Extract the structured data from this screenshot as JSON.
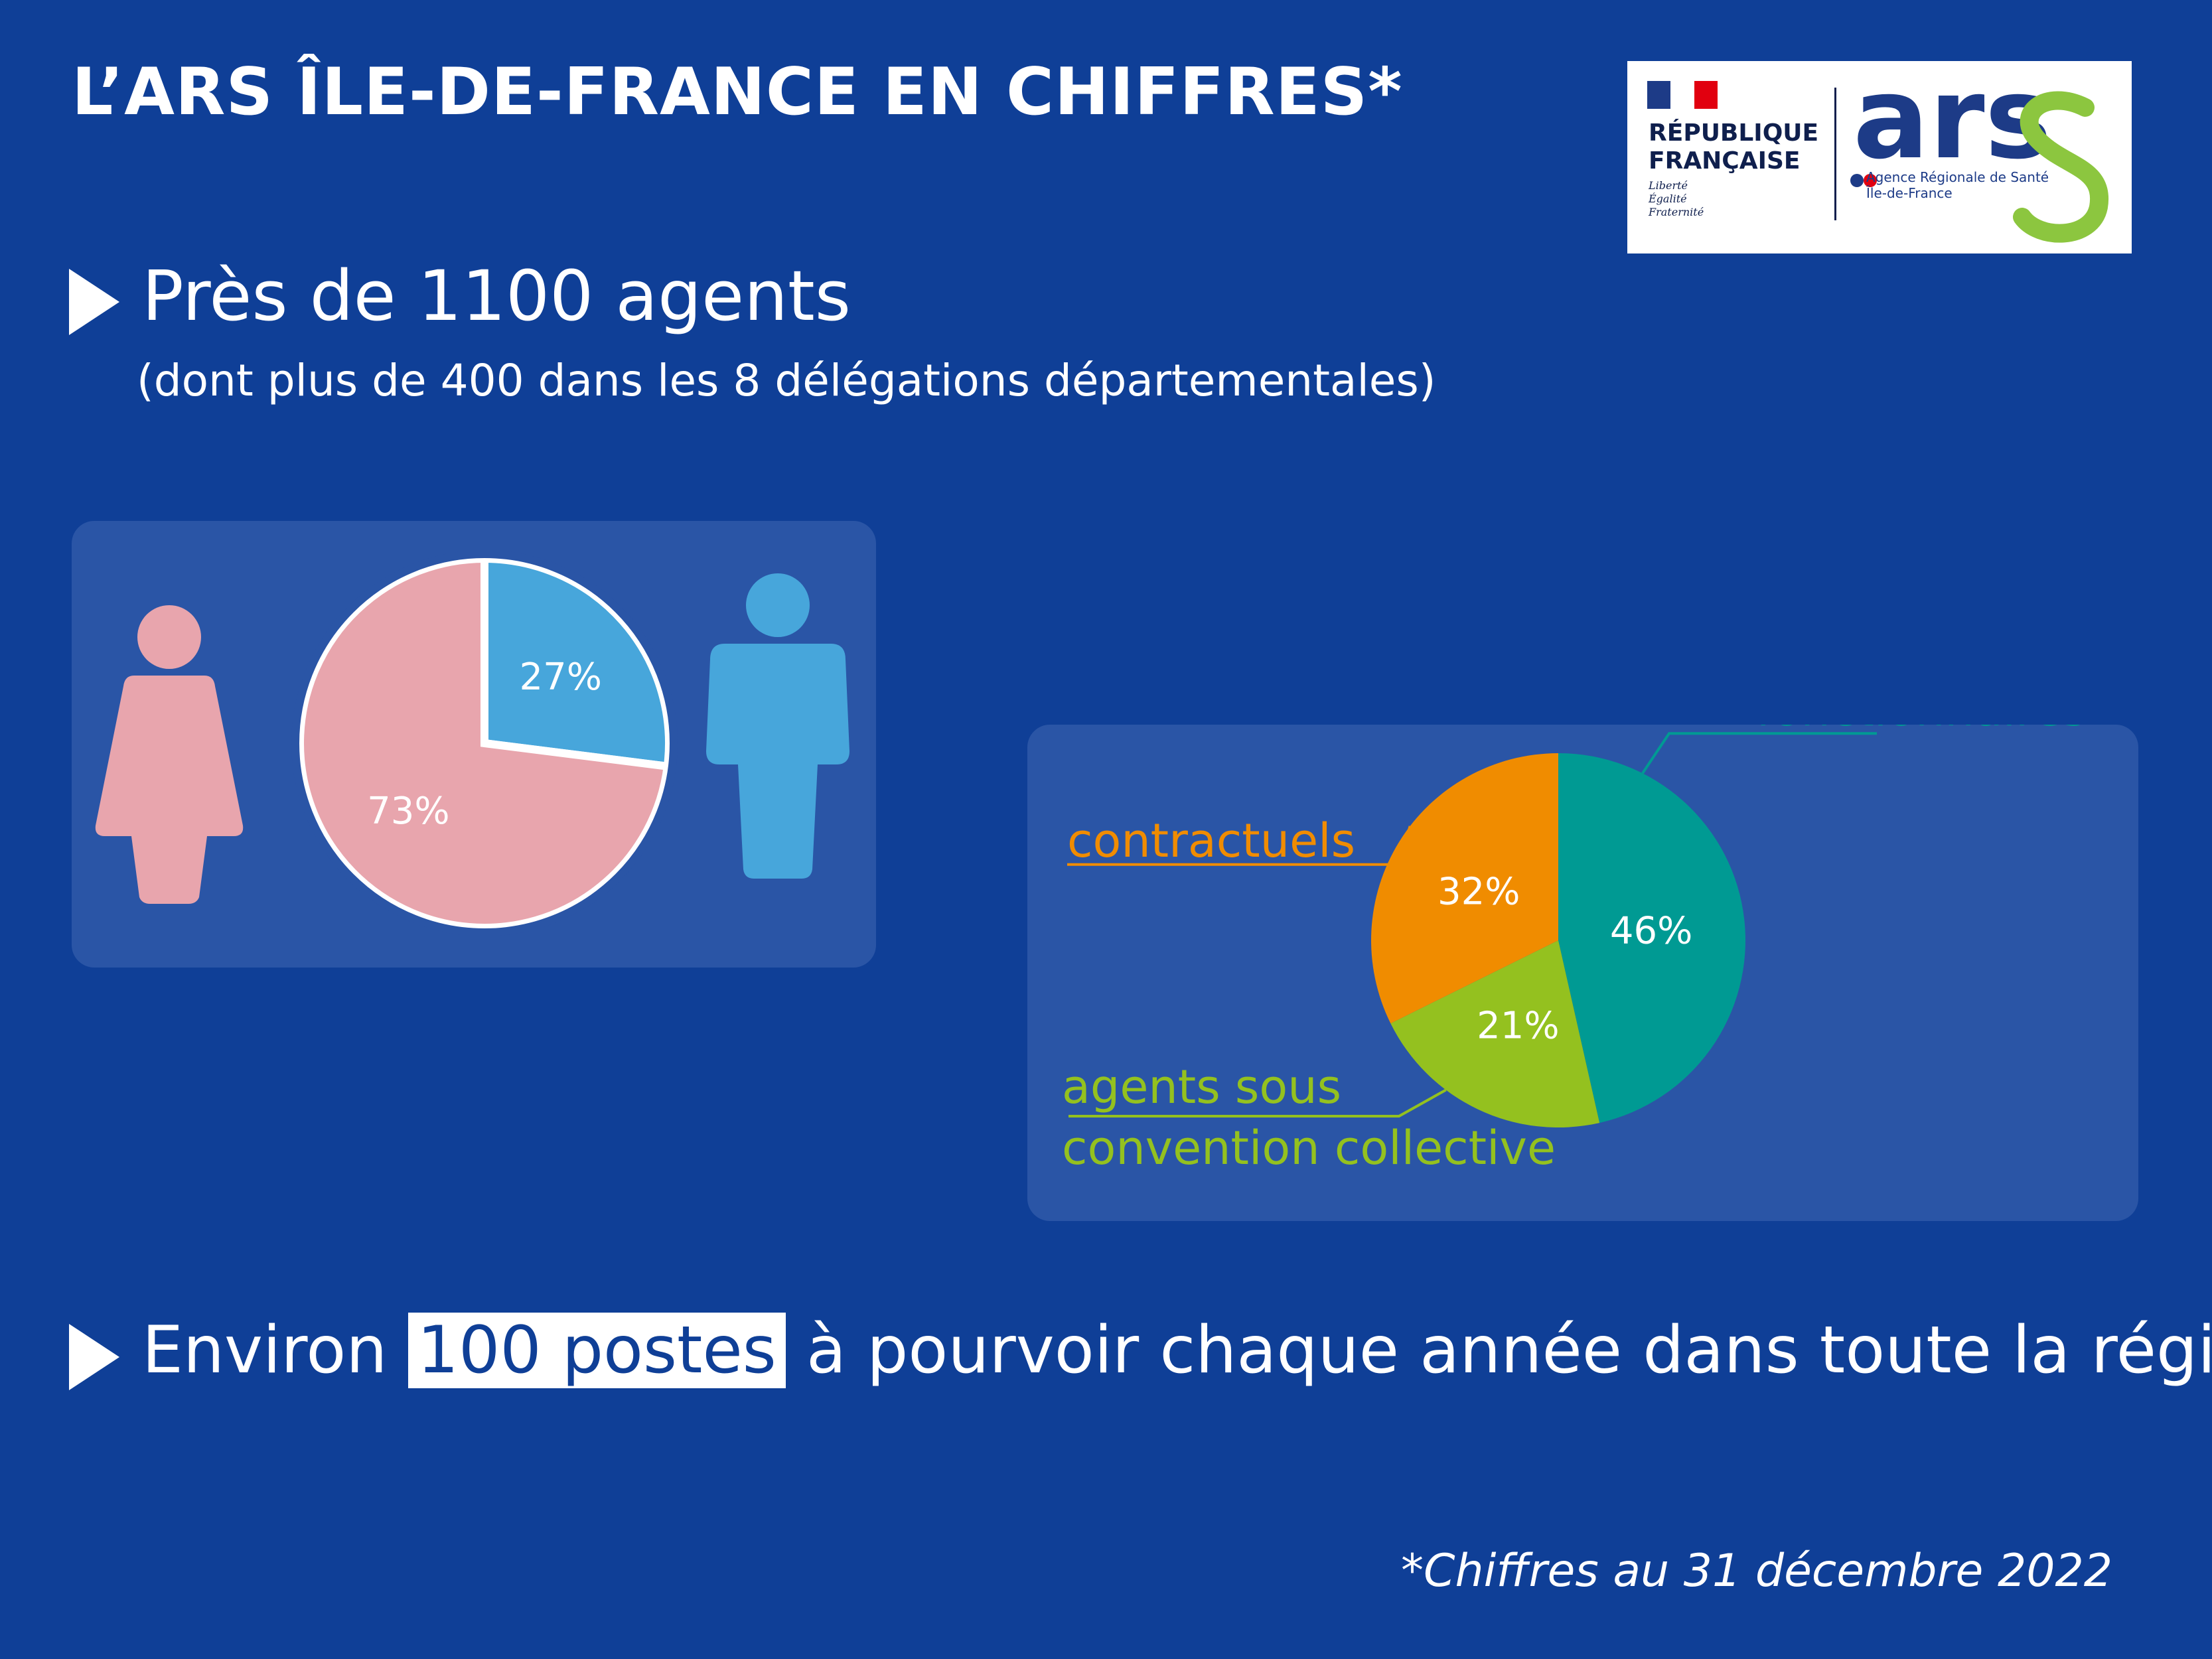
{
  "title": "L’ARS ÎLE-DE-FRANCE EN CHIFFRES*",
  "logo": {
    "republique": "RÉPUBLIQUE\nFRANÇAISE",
    "motto": "Liberté\nÉgalité\nFraternité",
    "ars_wordmark": "ars",
    "ars_subtitle": "Agence Régionale de Santé\nÎle-de-France"
  },
  "bullet1": {
    "text": "Près de 1100 agents",
    "sub": "(dont plus de 400 dans les 8 délégations départementales)"
  },
  "bullet2": {
    "before": "Environ ",
    "highlight": "100 postes",
    "after": " à pourvoir chaque année dans toute la région"
  },
  "footnote": "*Chiffres au 31 décembre 2022",
  "colors": {
    "background": "#0f3f97",
    "panel": "#2a55a6",
    "women": "#e8a5ad",
    "men": "#47a6db",
    "fonctionnaires": "#009a93",
    "agents_sous_convention": "#94c11f",
    "contractuels": "#f08c00",
    "logo_green": "#8cc63f",
    "logo_blue": "#1d3b87"
  },
  "icons": {
    "women": "woman-icon",
    "men": "man-icon"
  },
  "chart_data": [
    {
      "type": "pie",
      "categories": [
        "women",
        "men"
      ],
      "values": [
        73,
        27
      ],
      "labels": [
        "73%",
        "27%"
      ],
      "colors": [
        "#e8a5ad",
        "#47a6db"
      ]
    },
    {
      "type": "pie",
      "categories": [
        "fonctionnaires",
        "agents sous convention collective",
        "contractuels"
      ],
      "category_labels": [
        [
          "fonctionnaires"
        ],
        [
          "agents sous",
          "convention collective"
        ],
        [
          "contractuels"
        ]
      ],
      "values": [
        46,
        21,
        32
      ],
      "labels": [
        "46%",
        "21%",
        "32%"
      ],
      "colors": [
        "#009a93",
        "#94c11f",
        "#f08c00"
      ]
    }
  ]
}
